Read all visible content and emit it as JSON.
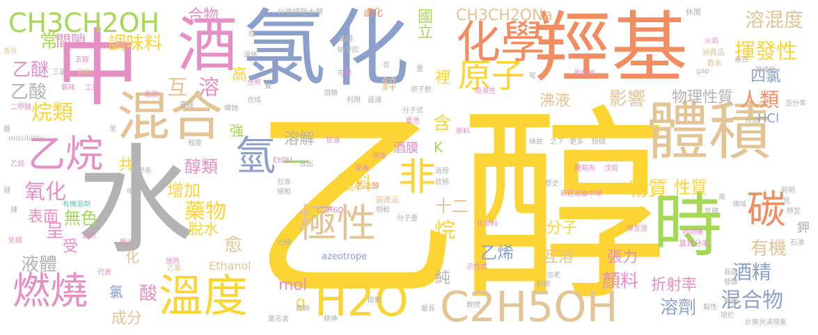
{
  "palette": {
    "yellow": "#fcd535",
    "gray": "#b3b3b3",
    "pink": "#e58fc5",
    "blue": "#8da0cb",
    "orange": "#f28d62",
    "green": "#a5d854",
    "tan": "#e4c494",
    "teal": "#66c2a5"
  },
  "words": [
    "乙醇",
    "水",
    "氯化",
    "羥基",
    "中",
    "體積",
    "時",
    "酒",
    "混合",
    "化學",
    "溫度",
    "H2O",
    "C2H5OH",
    "極性",
    "乙烷",
    "燃燒",
    "非",
    "氫",
    "碳",
    "原子",
    "CH3CH2OH",
    "CH3CH2ONa",
    "揮發性",
    "溶混度",
    "藥物",
    "燃料",
    "物質",
    "混合物",
    "人類",
    "溶劑",
    "調味料",
    "醇類",
    "烷類",
    "氧化",
    "酒精",
    "性質",
    "顏料",
    "乙醚",
    "乙酸",
    "常",
    "間隙",
    "合物",
    "互",
    "溶",
    "國立",
    "影響",
    "物理性質",
    "沸液",
    "溶解",
    "增加",
    "四氯",
    "烷",
    "乙烯",
    "互溶",
    "有機",
    "張力",
    "折射率",
    "分子",
    "十二",
    "無色",
    "表面",
    "液體",
    "脫水",
    "愈",
    "酸",
    "呈",
    "受",
    "成分",
    "一",
    "高",
    "強",
    "g",
    "mol",
    "K",
    "HCl",
    "鉀",
    "酒膜",
    "純",
    "含",
    "裡",
    "鋅",
    "共",
    "氯",
    "化",
    "Ethanol",
    "azeotrope",
    "EtOH",
    "C2H6O",
    "乙二醇",
    "副產品",
    "台灣師範大學",
    "鹵化",
    "休閒",
    "消費品",
    "香水",
    "香任",
    "飲料",
    "五碳",
    "三氯",
    "氣味",
    "工業",
    "脂肪",
    "脂肪烴",
    "吸濕性",
    "二甲醚",
    "糖",
    "苯",
    "miscibility",
    "乙烷",
    "化學系",
    "甲苯",
    "有機溶劑",
    "鏈",
    "化碳",
    "氯仿",
    "壓力",
    "代表",
    "放熱",
    "乙基",
    "可燃",
    "硝甲烷",
    "編輯",
    "煙",
    "退休",
    "分界",
    "利用",
    "酒類",
    "過減",
    "分子式",
    "藍色",
    "原料",
    "甘油",
    "用途",
    "提煉",
    "過程",
    "狀態",
    "相較",
    "化學科",
    "示性式",
    "教師",
    "精神",
    "碳數",
    "最長",
    "教授",
    "黏性",
    "保暖",
    "葉名舍",
    "計無共沸現象",
    "限於",
    "長鏈",
    "發酵",
    "長期",
    "古老",
    "石油",
    "莫耳分率",
    "內燃機",
    "揮互溶",
    "戊烷",
    "簡寫為",
    "歷史",
    "新莊高級中學",
    "綠故",
    "之下",
    "更多",
    "短碳",
    "照明",
    "見",
    "特定",
    "領域",
    "需",
    "氫鍵",
    "自古",
    "陳偉民",
    "百分率",
    "gap",
    "火焰",
    "鏈",
    "包含",
    "總和",
    "光線",
    "程度",
    "放出",
    "直鏈",
    "構物",
    "合成",
    "寬",
    "分子量",
    "原子數",
    "否",
    "量",
    "啶",
    "可燃"
  ]
}
